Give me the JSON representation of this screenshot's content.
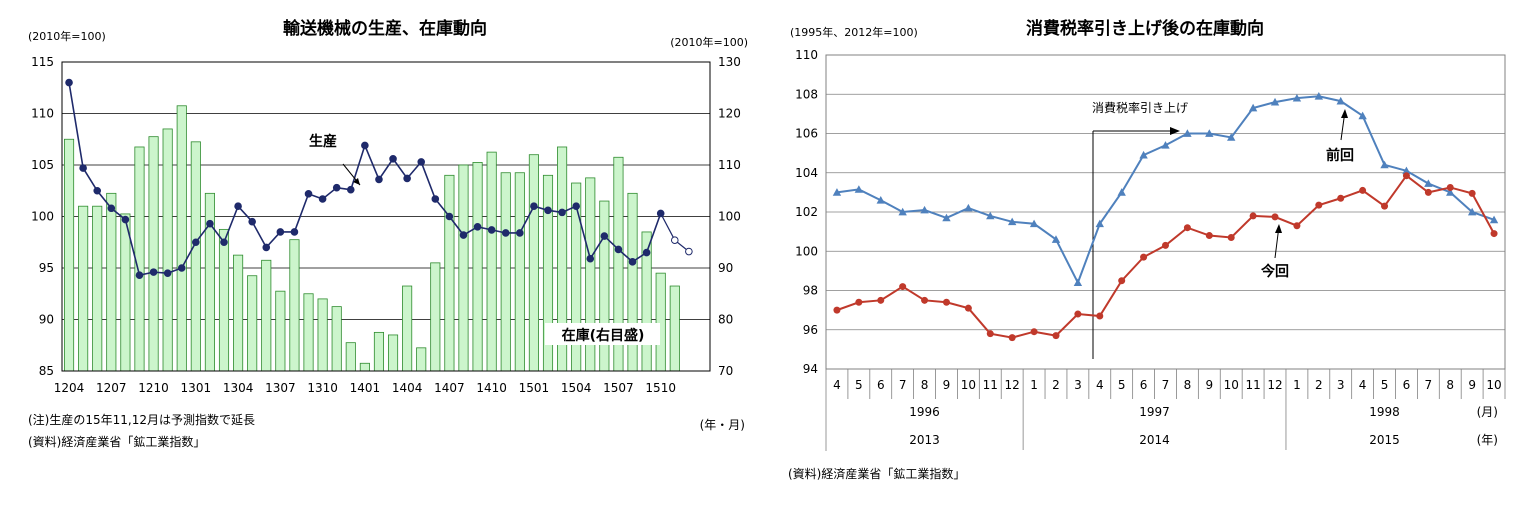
{
  "chart_data": [
    {
      "type": "bar+line",
      "title": "輸送機械の生産、在庫動向",
      "left_axis_unit": "(2010年=100)",
      "right_axis_unit": "(2010年=100)",
      "ylim_left": [
        85,
        115
      ],
      "ylim_right": [
        70,
        130
      ],
      "yticks_left": [
        "85",
        "90",
        "95",
        "100",
        "105",
        "110",
        "115"
      ],
      "yticks_right": [
        "70",
        "80",
        "90",
        "100",
        "110",
        "120",
        "130"
      ],
      "xtick_labels": [
        "1204",
        "1207",
        "1210",
        "1301",
        "1304",
        "1307",
        "1310",
        "1401",
        "1404",
        "1407",
        "1410",
        "1501",
        "1504",
        "1507",
        "1510"
      ],
      "x_unit": "(年・月)",
      "series": [
        {
          "name": "生産",
          "axis": "left",
          "color": "#1f2a6b",
          "values": [
            113.0,
            104.7,
            102.5,
            100.8,
            99.7,
            94.3,
            94.6,
            94.5,
            95.0,
            97.5,
            99.3,
            97.5,
            101.0,
            99.5,
            97.0,
            98.5,
            98.5,
            102.2,
            101.7,
            102.8,
            102.6,
            106.9,
            103.6,
            105.6,
            103.7,
            105.3,
            101.7,
            100.0,
            98.2,
            99.0,
            98.7,
            98.4,
            98.4,
            101.0,
            100.6,
            100.4,
            101.0,
            95.9,
            98.1,
            96.8,
            95.6,
            96.5,
            100.3,
            97.7,
            96.6
          ],
          "forecast_from_index": 43
        },
        {
          "name": "在庫(右目盛)",
          "axis": "right",
          "color_fill": "#ccf5cc",
          "color_stroke": "#2e8b2e",
          "values": [
            115.0,
            102.0,
            102.0,
            104.5,
            100.5,
            113.5,
            115.5,
            117.0,
            121.5,
            114.5,
            104.5,
            97.5,
            92.5,
            88.5,
            91.5,
            85.5,
            95.5,
            85.0,
            84.0,
            82.5,
            75.5,
            71.5,
            77.5,
            77.0,
            86.5,
            74.5,
            91.0,
            108.0,
            110.0,
            110.5,
            112.5,
            108.5,
            108.5,
            112.0,
            108.0,
            113.5,
            106.5,
            107.5,
            103.0,
            111.5,
            104.5,
            97.0,
            89.0,
            86.5
          ]
        }
      ],
      "labels": {
        "production": "生産",
        "inventory": "在庫(右目盛)"
      },
      "notes": [
        "(注)生産の15年11,12月は予測指数で延長",
        "(資料)経済産業省「鉱工業指数」"
      ]
    },
    {
      "type": "line",
      "title": "消費税率引き上げ後の在庫動向",
      "y_unit": "(1995年、2012年=100)",
      "ylim": [
        94,
        110
      ],
      "yticks": [
        "94",
        "96",
        "98",
        "100",
        "102",
        "104",
        "106",
        "108",
        "110"
      ],
      "months": [
        "4",
        "5",
        "6",
        "7",
        "8",
        "9",
        "10",
        "11",
        "12",
        "1",
        "2",
        "3",
        "4",
        "5",
        "6",
        "7",
        "8",
        "9",
        "10",
        "11",
        "12",
        "1",
        "2",
        "3",
        "4",
        "5",
        "6",
        "7",
        "8",
        "9",
        "10"
      ],
      "month_unit": "(月)",
      "year_unit": "(年)",
      "years_top": [
        "1996",
        "1997",
        "1998"
      ],
      "years_bottom": [
        "2013",
        "2014",
        "2015"
      ],
      "series": [
        {
          "name": "前回",
          "color": "#4f81bd",
          "marker": "triangle",
          "values": [
            103.0,
            103.15,
            102.6,
            102.0,
            102.1,
            101.7,
            102.2,
            101.8,
            101.5,
            101.4,
            100.6,
            98.4,
            101.4,
            103.0,
            104.9,
            105.4,
            106.0,
            106.0,
            105.8,
            107.3,
            107.6,
            107.8,
            107.9,
            107.65,
            106.9,
            104.4,
            104.1,
            103.45,
            103.0,
            102.0,
            101.6
          ]
        },
        {
          "name": "今回",
          "color": "#c0392b",
          "marker": "circle",
          "values": [
            97.0,
            97.4,
            97.5,
            98.2,
            97.5,
            97.4,
            97.1,
            95.8,
            95.6,
            95.9,
            95.7,
            96.8,
            96.7,
            98.5,
            99.7,
            100.3,
            101.2,
            100.8,
            100.7,
            101.8,
            101.75,
            101.3,
            102.35,
            102.7,
            103.1,
            102.3,
            103.85,
            103.0,
            103.25,
            102.95,
            100.9
          ]
        }
      ],
      "annotation": "消費税率引き上げ",
      "labels": {
        "prev": "前回",
        "curr": "今回"
      },
      "notes": [
        "(資料)経済産業省「鉱工業指数」"
      ]
    }
  ]
}
